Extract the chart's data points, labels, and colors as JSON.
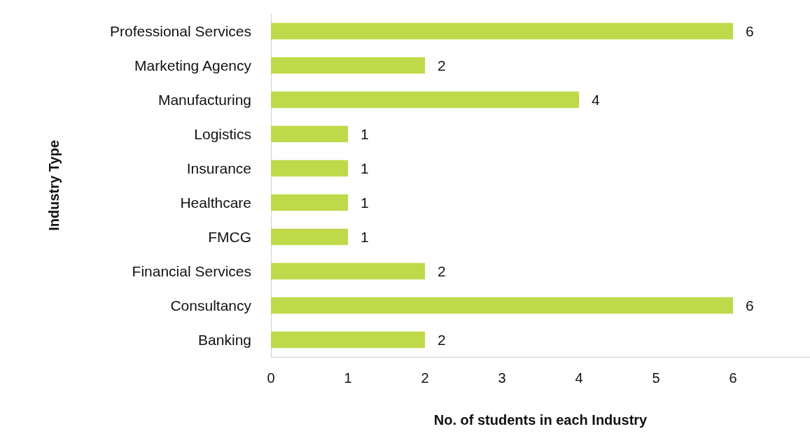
{
  "chart_data": {
    "type": "bar",
    "orientation": "horizontal",
    "xlabel": "No. of students in each Industry",
    "ylabel": "Industry Type",
    "categories": [
      "Professional Services",
      "Marketing Agency",
      "Manufacturing",
      "Logistics",
      "Insurance",
      "Healthcare",
      "FMCG",
      "Financial Services",
      "Consultancy",
      "Banking"
    ],
    "values": [
      6,
      2,
      4,
      1,
      1,
      1,
      1,
      2,
      6,
      2
    ],
    "color": "#bed94a",
    "xlim": [
      0,
      7
    ],
    "xticks": [
      0,
      1,
      2,
      3,
      4,
      5,
      6
    ],
    "data_labels": true,
    "grid": false
  }
}
